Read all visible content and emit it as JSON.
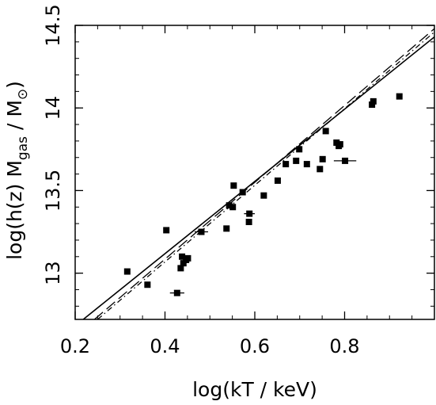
{
  "chart_data": {
    "type": "scatter",
    "xlabel": "log(kT / keV)",
    "ylabel": {
      "prefix": "log(h(z) M",
      "subscript": "gas",
      "suffix": " / M",
      "sun_symbol": "⊙",
      "close": ")"
    },
    "xlim": [
      0.2,
      1.0
    ],
    "ylim": [
      12.72,
      14.5
    ],
    "x_ticks": [
      "0.2",
      "0.4",
      "0.6",
      "0.8"
    ],
    "x_tick_values": [
      0.2,
      0.4,
      0.6,
      0.8
    ],
    "y_ticks": [
      "13",
      "13.5",
      "14",
      "14.5"
    ],
    "y_tick_values": [
      13.0,
      13.5,
      14.0,
      14.5
    ],
    "grid": false,
    "legend": "none",
    "points": [
      {
        "x": 0.316,
        "y": 13.01,
        "xerr": 0.0
      },
      {
        "x": 0.361,
        "y": 12.93,
        "xerr": 0.0
      },
      {
        "x": 0.403,
        "y": 13.26,
        "xerr": 0.0
      },
      {
        "x": 0.427,
        "y": 12.88,
        "xerr": 0.016
      },
      {
        "x": 0.435,
        "y": 13.03,
        "xerr": 0.0
      },
      {
        "x": 0.438,
        "y": 13.1,
        "xerr": 0.0
      },
      {
        "x": 0.441,
        "y": 13.06,
        "xerr": 0.0
      },
      {
        "x": 0.447,
        "y": 13.08,
        "xerr": 0.0
      },
      {
        "x": 0.451,
        "y": 13.09,
        "xerr": 0.0
      },
      {
        "x": 0.481,
        "y": 13.25,
        "xerr": 0.015
      },
      {
        "x": 0.537,
        "y": 13.27,
        "xerr": 0.0
      },
      {
        "x": 0.543,
        "y": 13.41,
        "xerr": 0.0
      },
      {
        "x": 0.551,
        "y": 13.4,
        "xerr": 0.0
      },
      {
        "x": 0.553,
        "y": 13.53,
        "xerr": 0.0
      },
      {
        "x": 0.573,
        "y": 13.49,
        "xerr": 0.0
      },
      {
        "x": 0.587,
        "y": 13.31,
        "xerr": 0.0
      },
      {
        "x": 0.588,
        "y": 13.36,
        "xerr": 0.012
      },
      {
        "x": 0.62,
        "y": 13.47,
        "xerr": 0.0
      },
      {
        "x": 0.651,
        "y": 13.56,
        "xerr": 0.0
      },
      {
        "x": 0.669,
        "y": 13.66,
        "xerr": 0.0
      },
      {
        "x": 0.692,
        "y": 13.68,
        "xerr": 0.0
      },
      {
        "x": 0.699,
        "y": 13.75,
        "xerr": 0.0
      },
      {
        "x": 0.716,
        "y": 13.66,
        "xerr": 0.0
      },
      {
        "x": 0.745,
        "y": 13.63,
        "xerr": 0.0
      },
      {
        "x": 0.751,
        "y": 13.69,
        "xerr": 0.0
      },
      {
        "x": 0.758,
        "y": 13.86,
        "xerr": 0.0
      },
      {
        "x": 0.782,
        "y": 13.79,
        "xerr": 0.0
      },
      {
        "x": 0.787,
        "y": 13.77,
        "xerr": 0.0
      },
      {
        "x": 0.79,
        "y": 13.78,
        "xerr": 0.0
      },
      {
        "x": 0.801,
        "y": 13.68,
        "xerr": 0.025
      },
      {
        "x": 0.861,
        "y": 14.02,
        "xerr": 0.0
      },
      {
        "x": 0.864,
        "y": 14.04,
        "xerr": 0.0
      },
      {
        "x": 0.922,
        "y": 14.07,
        "xerr": 0.0
      }
    ],
    "fit_lines": [
      {
        "style": "solid",
        "x": [
          0.218,
          1.0
        ],
        "y": [
          12.72,
          14.43
        ]
      },
      {
        "style": "dashed",
        "x": [
          0.243,
          1.0
        ],
        "y": [
          12.72,
          14.48
        ]
      },
      {
        "style": "dotted",
        "x": [
          0.25,
          1.0
        ],
        "y": [
          12.72,
          14.46
        ]
      }
    ],
    "colors": {
      "ink": "#000000",
      "background": "#ffffff"
    }
  }
}
